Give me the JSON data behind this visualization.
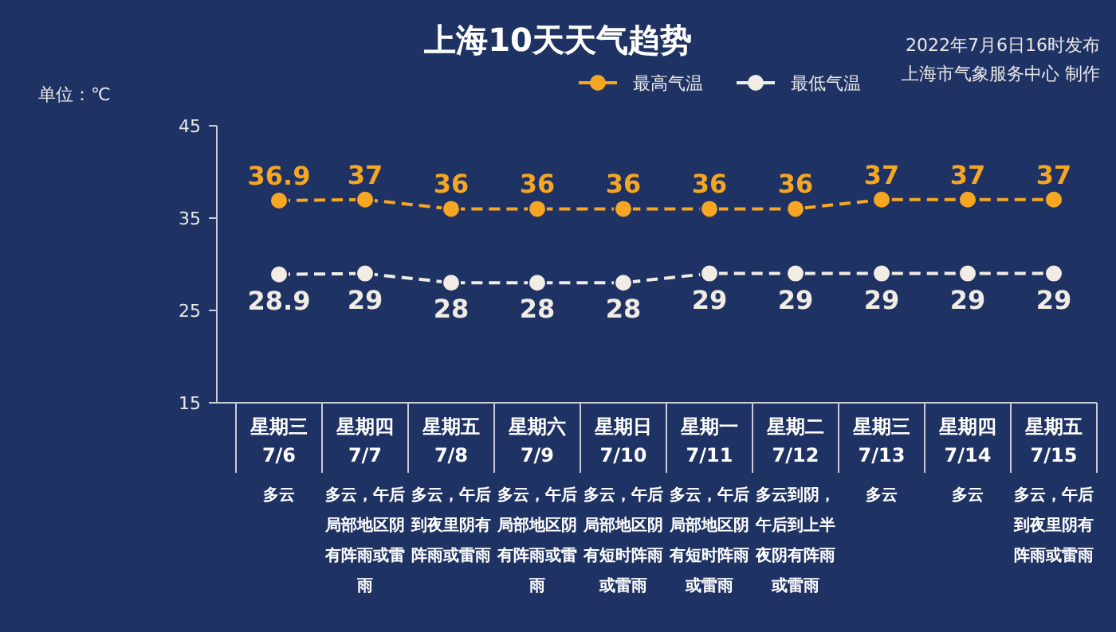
{
  "chart_data": {
    "type": "line",
    "title": "上海10天天气趋势",
    "ylabel": "单位：℃",
    "categories": [
      "星期三 7/6",
      "星期四 7/7",
      "星期五 7/8",
      "星期六 7/9",
      "星期日 7/10",
      "星期一 7/11",
      "星期二 7/12",
      "星期三 7/13",
      "星期四 7/14",
      "星期五 7/15"
    ],
    "series": [
      {
        "name": "最高气温",
        "color": "#f5a623",
        "values": [
          36.9,
          37,
          36,
          36,
          36,
          36,
          36,
          37,
          37,
          37
        ]
      },
      {
        "name": "最低气温",
        "color": "#f2ede4",
        "values": [
          28.9,
          29,
          28,
          28,
          28,
          29,
          29,
          29,
          29,
          29
        ]
      }
    ],
    "ylim": [
      15,
      45
    ],
    "yticks": [
      15,
      25,
      35,
      45
    ],
    "grid": false,
    "legend": "top",
    "marker": "circle",
    "line_style": "dashed",
    "data_labels": true,
    "annotations": [
      "2022年7月6日16时发布",
      "上海市气象服务中心 制作",
      "多云",
      "多云，午后局部地区阴有阵雨或雷雨",
      "多云，午后到夜里阴有阵雨或雷雨",
      "多云，午后局部地区阴有阵雨或雷雨",
      "多云，午后局部地区阴有短时阵雨或雷雨",
      "多云，午后局部地区阴有短时阵雨或雷雨",
      "多云到阴，午后到上半夜阴有阵雨或雷雨",
      "多云",
      "多云",
      "多云，午后到夜里阴有阵雨或雷雨"
    ]
  }
}
